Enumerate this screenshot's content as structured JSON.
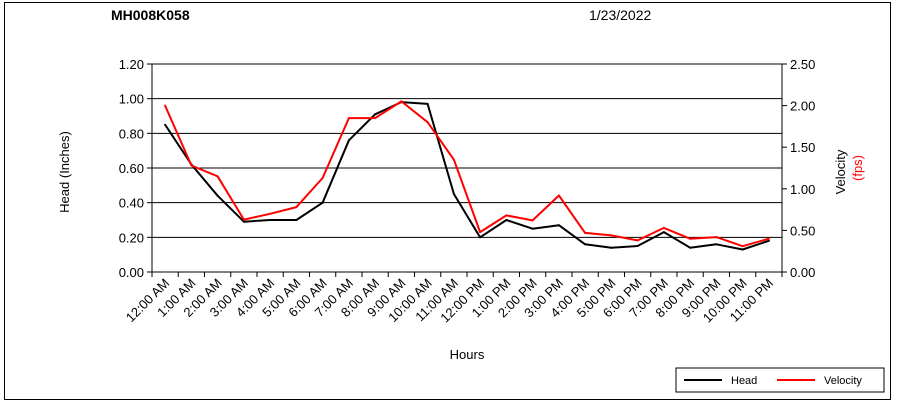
{
  "chart_data": {
    "type": "line",
    "title": "MH008K058",
    "date": "1/23/2022",
    "xlabel": "Hours",
    "ylabel_left": "Head (Inches)",
    "ylabel_right_1": "Velocity",
    "ylabel_right_2": "(fps)",
    "ylim_left": [
      0,
      1.2
    ],
    "ylim_right": [
      0,
      2.5
    ],
    "yticks_left": [
      "0.00",
      "0.20",
      "0.40",
      "0.60",
      "0.80",
      "1.00",
      "1.20"
    ],
    "yticks_right": [
      "0.00",
      "0.50",
      "1.00",
      "1.50",
      "2.00",
      "2.50"
    ],
    "grid": true,
    "legend_position": "bottom-right",
    "categories": [
      "12:00 AM",
      "1:00 AM",
      "2:00 AM",
      "3:00 AM",
      "4:00 AM",
      "5:00 AM",
      "6:00 AM",
      "7:00 AM",
      "8:00 AM",
      "9:00 AM",
      "10:00 AM",
      "11:00 AM",
      "12:00 PM",
      "1:00 PM",
      "2:00 PM",
      "3:00 PM",
      "4:00 PM",
      "5:00 PM",
      "6:00 PM",
      "7:00 PM",
      "8:00 PM",
      "9:00 PM",
      "10:00 PM",
      "11:00 PM"
    ],
    "series": [
      {
        "name": "Head",
        "axis": "left",
        "color": "#000000",
        "values": [
          0.85,
          0.62,
          0.44,
          0.29,
          0.3,
          0.3,
          0.4,
          0.76,
          0.91,
          0.98,
          0.97,
          0.45,
          0.2,
          0.3,
          0.25,
          0.27,
          0.16,
          0.14,
          0.15,
          0.23,
          0.14,
          0.16,
          0.13,
          0.18
        ]
      },
      {
        "name": "Velocity",
        "axis": "right",
        "color": "#ff0000",
        "values": [
          2.0,
          1.28,
          1.15,
          0.63,
          0.7,
          0.78,
          1.13,
          1.85,
          1.85,
          2.05,
          1.8,
          1.35,
          0.48,
          0.68,
          0.62,
          0.92,
          0.47,
          0.44,
          0.38,
          0.53,
          0.4,
          0.42,
          0.31,
          0.4
        ]
      }
    ]
  }
}
